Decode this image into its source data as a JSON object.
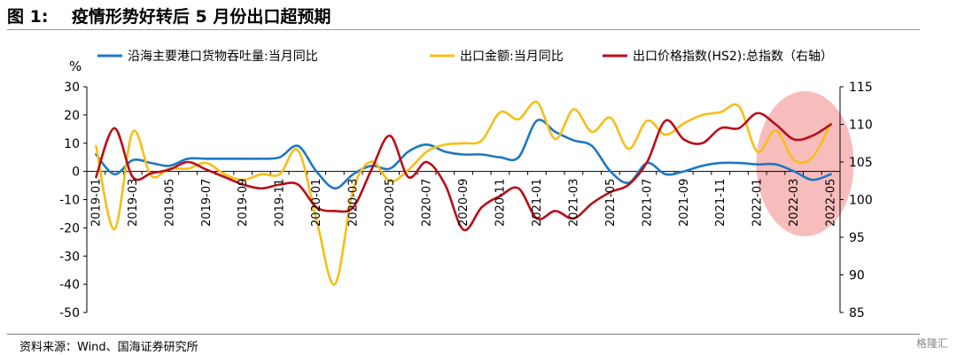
{
  "figure": {
    "title": "图 1:    疫情形势好转后 5 月份出口超预期",
    "source": "资料来源：Wind、国海证券研究所",
    "watermark": "格隆汇"
  },
  "colors": {
    "port": "#1F78C1",
    "export": "#F7BE16",
    "price": "#B80E19",
    "highlight": "#F4A7A7"
  },
  "chart_data": {
    "type": "line",
    "left_unit": "%",
    "ylim_left": [
      -50,
      30
    ],
    "yticks_left": [
      -50,
      -40,
      -30,
      -20,
      -10,
      0,
      10,
      20,
      30
    ],
    "ylim_right": [
      85,
      115
    ],
    "yticks_right": [
      85,
      90,
      95,
      100,
      105,
      110,
      115
    ],
    "x_tick_labels": [
      "2019-01",
      "2019-03",
      "2019-05",
      "2019-07",
      "2019-09",
      "2019-11",
      "2020-01",
      "2020-03",
      "2020-05",
      "2020-07",
      "2020-09",
      "2020-11",
      "2021-01",
      "2021-03",
      "2021-05",
      "2021-07",
      "2021-09",
      "2021-11",
      "2022-01",
      "2022-03",
      "2022-05"
    ],
    "x": [
      "2019-01",
      "2019-02",
      "2019-03",
      "2019-04",
      "2019-05",
      "2019-06",
      "2019-07",
      "2019-08",
      "2019-09",
      "2019-10",
      "2019-11",
      "2019-12",
      "2020-01",
      "2020-02",
      "2020-03",
      "2020-04",
      "2020-05",
      "2020-06",
      "2020-07",
      "2020-08",
      "2020-09",
      "2020-10",
      "2020-11",
      "2020-12",
      "2021-01",
      "2021-02",
      "2021-03",
      "2021-04",
      "2021-05",
      "2021-06",
      "2021-07",
      "2021-08",
      "2021-09",
      "2021-10",
      "2021-11",
      "2021-12",
      "2022-01",
      "2022-02",
      "2022-03",
      "2022-04",
      "2022-05"
    ],
    "legend_position": "top",
    "series": [
      {
        "name": "沿海主要港口货物吞吐量:当月同比",
        "axis": "left",
        "values": [
          6,
          -1,
          4,
          3,
          2,
          4.5,
          4.5,
          4.5,
          4.5,
          4.5,
          5,
          9,
          0,
          -6,
          -1,
          2,
          1,
          7,
          9.5,
          7,
          6,
          6,
          5,
          5,
          18,
          14,
          11,
          9,
          0,
          -4,
          3,
          -1,
          0,
          2,
          3,
          3,
          2.5,
          2.5,
          0,
          -3,
          -1
        ]
      },
      {
        "name": "出口金额:当月同比",
        "axis": "left",
        "values": [
          9,
          -20.5,
          14,
          -1.5,
          1,
          1,
          3,
          -1,
          -3,
          -1,
          -1,
          7.5,
          -17,
          -40,
          -6.5,
          3.5,
          -3.5,
          0.5,
          7,
          9.5,
          10,
          11,
          21,
          18.5,
          24.5,
          11.5,
          22,
          14,
          19,
          8,
          18,
          13,
          17,
          20,
          21,
          23,
          7,
          14.5,
          4,
          5,
          17
        ]
      },
      {
        "name": "出口价格指数(HS2):总指数（右轴）",
        "axis": "right",
        "values": [
          103,
          109.5,
          103,
          103.5,
          104,
          105,
          104,
          103,
          102,
          101.5,
          102,
          102,
          99,
          98.5,
          99,
          104,
          108.5,
          103,
          105,
          102,
          96,
          99,
          100.5,
          101.5,
          97.5,
          98.5,
          97.5,
          99.5,
          101,
          102,
          105,
          110.5,
          108,
          107.5,
          109.5,
          109.5,
          111.5,
          110,
          108,
          108.5,
          110
        ]
      }
    ],
    "highlight_range": [
      "2022-02",
      "2022-05"
    ]
  }
}
